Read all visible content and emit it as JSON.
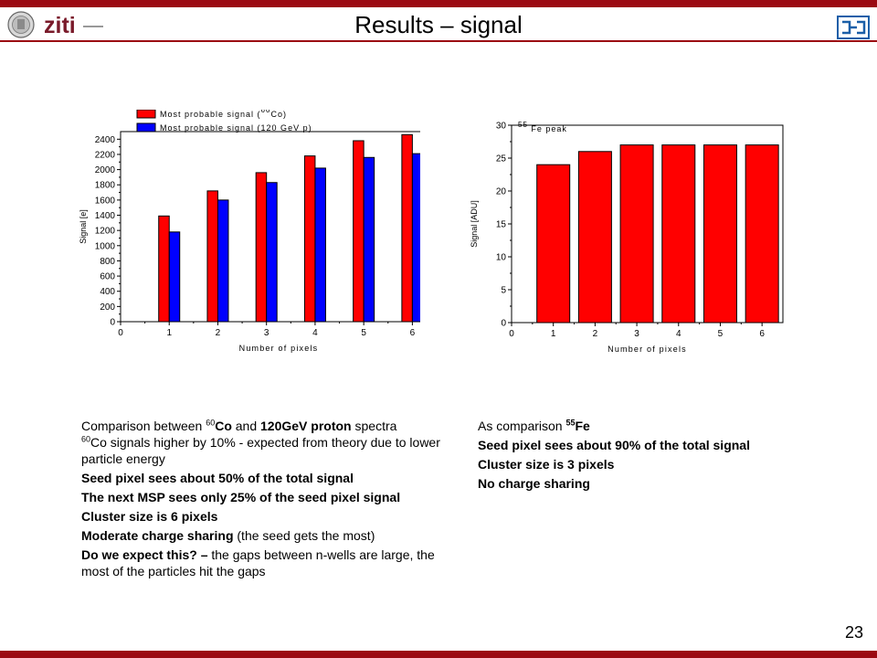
{
  "header": {
    "title": "Results – signal",
    "colors": {
      "accent": "#9b0a12"
    }
  },
  "logos": {
    "left_seal": "university-seal-icon",
    "left_text": "ziti",
    "right": "institute-logo-icon"
  },
  "footer": {
    "page_number": "23"
  },
  "chart_data": [
    {
      "type": "bar",
      "categories": [
        1,
        2,
        3,
        4,
        5,
        6
      ],
      "series": [
        {
          "name_prefix": "Most probable signal (",
          "name_sup": "60",
          "name_suffix": "Co)",
          "color": "#ff0000",
          "values": [
            1390,
            1720,
            1960,
            2180,
            2380,
            2460
          ]
        },
        {
          "name": "Most probable signal (120 GeV p)",
          "color": "#0000ff",
          "values": [
            1180,
            1600,
            1830,
            2020,
            2160,
            2210
          ]
        }
      ],
      "xlabel": "Number of pixels",
      "ylabel": "Signal [e]",
      "xlim": [
        0,
        6.5
      ],
      "ylim": [
        0,
        2500
      ],
      "xticks": [
        0,
        1,
        2,
        3,
        4,
        5,
        6
      ],
      "yticks": [
        0,
        200,
        400,
        600,
        800,
        1000,
        1200,
        1400,
        1600,
        1800,
        2000,
        2200,
        2400
      ],
      "legend": "top-left"
    },
    {
      "type": "bar",
      "categories": [
        1,
        2,
        3,
        4,
        5,
        6
      ],
      "series": [
        {
          "name": "Fe peak",
          "name_sup": "55",
          "color": "#ff0000",
          "values": [
            24,
            26,
            27,
            27,
            27,
            27
          ]
        }
      ],
      "xlabel": "Number of pixels",
      "ylabel": "Signal [ADU]",
      "xlim": [
        0,
        6.5
      ],
      "ylim": [
        0,
        30
      ],
      "xticks": [
        0,
        1,
        2,
        3,
        4,
        5,
        6
      ],
      "yticks": [
        0,
        5,
        10,
        15,
        20,
        25,
        30
      ]
    }
  ],
  "notes_left": {
    "l1_pre": "Comparison between ",
    "l1_sup": "60",
    "l1_co": "Co",
    "l1_and": " and ",
    "l1_proton": "120GeV proton",
    "l1_post": " spectra",
    "l2_sup": "60",
    "l2_text": "Co signals higher by 10% - expected from theory due to lower particle energy",
    "l3": "Seed pixel sees about 50% of the total signal",
    "l4": "The next MSP sees only 25% of the seed pixel signal",
    "l5": "Cluster size is 6 pixels",
    "l6_bold": "Moderate charge sharing",
    "l6_rest": " (the seed gets the most)",
    "l7_bold": "Do we expect this? –",
    "l7_rest": " the gaps between n-wells are large, the most of the particles hit the gaps"
  },
  "notes_right": {
    "l1_pre": "As comparison ",
    "l1_sup": "55",
    "l1_fe": "Fe",
    "l2": "Seed pixel sees about 90% of the total signal",
    "l3": "Cluster size is 3 pixels",
    "l4": "No charge sharing"
  }
}
